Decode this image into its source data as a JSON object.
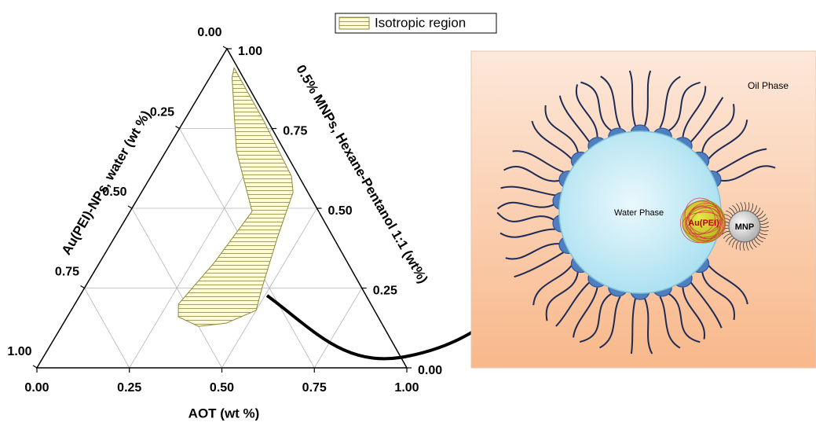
{
  "chart_data": {
    "type": "ternary",
    "axes": {
      "bottom": {
        "title": "AOT (wt %)",
        "ticks": [
          {
            "value": 0,
            "label": "0.00"
          },
          {
            "value": 0.25,
            "label": "0.25"
          },
          {
            "value": 0.5,
            "label": "0.50"
          },
          {
            "value": 0.75,
            "label": "0.75"
          },
          {
            "value": 1,
            "label": "1.00"
          }
        ]
      },
      "right": {
        "title": "0.5% MNPs, Hexane-Pentanol 1:1 (wt%)",
        "ticks": [
          {
            "value": 0,
            "label": "0.00"
          },
          {
            "value": 0.25,
            "label": "0.25"
          },
          {
            "value": 0.5,
            "label": "0.50"
          },
          {
            "value": 0.75,
            "label": "0.75"
          },
          {
            "value": 1,
            "label": "1.00"
          }
        ]
      },
      "left": {
        "title": "Au(PEI)-NPs, water (wt %)",
        "ticks": [
          {
            "value": 0,
            "label": "0.00"
          },
          {
            "value": 0.25,
            "label": "0.25"
          },
          {
            "value": 0.5,
            "label": "0.50"
          },
          {
            "value": 0.75,
            "label": "0.75"
          },
          {
            "value": 1,
            "label": "1.00"
          }
        ]
      }
    },
    "grid": true,
    "legend": "top",
    "series": [
      {
        "name": "Isotropic region",
        "color": "#8b8b3a",
        "fill": "#fffbd6",
        "aot": [
          0.05,
          0.06,
          0.21,
          0.38,
          0.41,
          0.44,
          0.48,
          0.5,
          0.44,
          0.37,
          0.3,
          0.28,
          0.31,
          0.33,
          0.19,
          0.06
        ],
        "oil": [
          0.94,
          0.93,
          0.78,
          0.6,
          0.55,
          0.41,
          0.25,
          0.18,
          0.14,
          0.13,
          0.16,
          0.2,
          0.33,
          0.49,
          0.68,
          0.91
        ],
        "water": [
          0.01,
          0.01,
          0.01,
          0.02,
          0.04,
          0.15,
          0.27,
          0.32,
          0.42,
          0.5,
          0.54,
          0.52,
          0.36,
          0.18,
          0.13,
          0.03
        ]
      }
    ]
  },
  "schematic": {
    "oil_phase": "Oil Phase",
    "water_phase": "Water Phase",
    "particle": "Au(PEI)",
    "mnp": "MNP"
  }
}
